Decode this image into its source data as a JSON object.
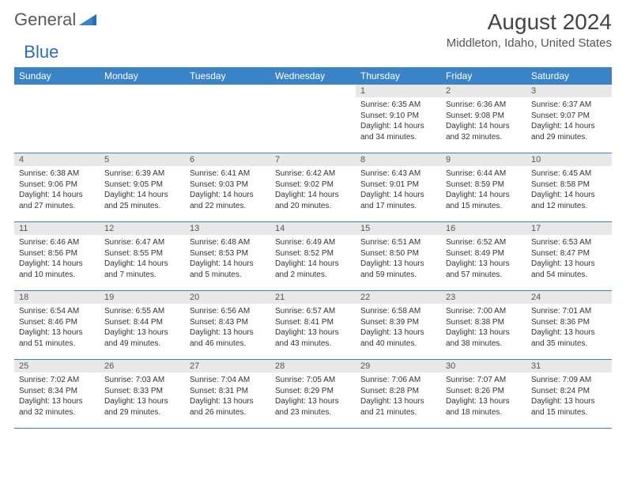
{
  "logo": {
    "general": "General",
    "blue": "Blue"
  },
  "title": "August 2024",
  "location": "Middleton, Idaho, United States",
  "colors": {
    "accent": "#3b83c7",
    "header_text": "#ffffff",
    "daynum_bg": "#e8e8e8",
    "body_text": "#333333",
    "logo_gray": "#5a5a5a",
    "logo_blue": "#2a6db8"
  },
  "day_names": [
    "Sunday",
    "Monday",
    "Tuesday",
    "Wednesday",
    "Thursday",
    "Friday",
    "Saturday"
  ],
  "weeks": [
    [
      {
        "empty": true
      },
      {
        "empty": true
      },
      {
        "empty": true
      },
      {
        "empty": true
      },
      {
        "num": "1",
        "sunrise": "Sunrise: 6:35 AM",
        "sunset": "Sunset: 9:10 PM",
        "daylight": "Daylight: 14 hours and 34 minutes."
      },
      {
        "num": "2",
        "sunrise": "Sunrise: 6:36 AM",
        "sunset": "Sunset: 9:08 PM",
        "daylight": "Daylight: 14 hours and 32 minutes."
      },
      {
        "num": "3",
        "sunrise": "Sunrise: 6:37 AM",
        "sunset": "Sunset: 9:07 PM",
        "daylight": "Daylight: 14 hours and 29 minutes."
      }
    ],
    [
      {
        "num": "4",
        "sunrise": "Sunrise: 6:38 AM",
        "sunset": "Sunset: 9:06 PM",
        "daylight": "Daylight: 14 hours and 27 minutes."
      },
      {
        "num": "5",
        "sunrise": "Sunrise: 6:39 AM",
        "sunset": "Sunset: 9:05 PM",
        "daylight": "Daylight: 14 hours and 25 minutes."
      },
      {
        "num": "6",
        "sunrise": "Sunrise: 6:41 AM",
        "sunset": "Sunset: 9:03 PM",
        "daylight": "Daylight: 14 hours and 22 minutes."
      },
      {
        "num": "7",
        "sunrise": "Sunrise: 6:42 AM",
        "sunset": "Sunset: 9:02 PM",
        "daylight": "Daylight: 14 hours and 20 minutes."
      },
      {
        "num": "8",
        "sunrise": "Sunrise: 6:43 AM",
        "sunset": "Sunset: 9:01 PM",
        "daylight": "Daylight: 14 hours and 17 minutes."
      },
      {
        "num": "9",
        "sunrise": "Sunrise: 6:44 AM",
        "sunset": "Sunset: 8:59 PM",
        "daylight": "Daylight: 14 hours and 15 minutes."
      },
      {
        "num": "10",
        "sunrise": "Sunrise: 6:45 AM",
        "sunset": "Sunset: 8:58 PM",
        "daylight": "Daylight: 14 hours and 12 minutes."
      }
    ],
    [
      {
        "num": "11",
        "sunrise": "Sunrise: 6:46 AM",
        "sunset": "Sunset: 8:56 PM",
        "daylight": "Daylight: 14 hours and 10 minutes."
      },
      {
        "num": "12",
        "sunrise": "Sunrise: 6:47 AM",
        "sunset": "Sunset: 8:55 PM",
        "daylight": "Daylight: 14 hours and 7 minutes."
      },
      {
        "num": "13",
        "sunrise": "Sunrise: 6:48 AM",
        "sunset": "Sunset: 8:53 PM",
        "daylight": "Daylight: 14 hours and 5 minutes."
      },
      {
        "num": "14",
        "sunrise": "Sunrise: 6:49 AM",
        "sunset": "Sunset: 8:52 PM",
        "daylight": "Daylight: 14 hours and 2 minutes."
      },
      {
        "num": "15",
        "sunrise": "Sunrise: 6:51 AM",
        "sunset": "Sunset: 8:50 PM",
        "daylight": "Daylight: 13 hours and 59 minutes."
      },
      {
        "num": "16",
        "sunrise": "Sunrise: 6:52 AM",
        "sunset": "Sunset: 8:49 PM",
        "daylight": "Daylight: 13 hours and 57 minutes."
      },
      {
        "num": "17",
        "sunrise": "Sunrise: 6:53 AM",
        "sunset": "Sunset: 8:47 PM",
        "daylight": "Daylight: 13 hours and 54 minutes."
      }
    ],
    [
      {
        "num": "18",
        "sunrise": "Sunrise: 6:54 AM",
        "sunset": "Sunset: 8:46 PM",
        "daylight": "Daylight: 13 hours and 51 minutes."
      },
      {
        "num": "19",
        "sunrise": "Sunrise: 6:55 AM",
        "sunset": "Sunset: 8:44 PM",
        "daylight": "Daylight: 13 hours and 49 minutes."
      },
      {
        "num": "20",
        "sunrise": "Sunrise: 6:56 AM",
        "sunset": "Sunset: 8:43 PM",
        "daylight": "Daylight: 13 hours and 46 minutes."
      },
      {
        "num": "21",
        "sunrise": "Sunrise: 6:57 AM",
        "sunset": "Sunset: 8:41 PM",
        "daylight": "Daylight: 13 hours and 43 minutes."
      },
      {
        "num": "22",
        "sunrise": "Sunrise: 6:58 AM",
        "sunset": "Sunset: 8:39 PM",
        "daylight": "Daylight: 13 hours and 40 minutes."
      },
      {
        "num": "23",
        "sunrise": "Sunrise: 7:00 AM",
        "sunset": "Sunset: 8:38 PM",
        "daylight": "Daylight: 13 hours and 38 minutes."
      },
      {
        "num": "24",
        "sunrise": "Sunrise: 7:01 AM",
        "sunset": "Sunset: 8:36 PM",
        "daylight": "Daylight: 13 hours and 35 minutes."
      }
    ],
    [
      {
        "num": "25",
        "sunrise": "Sunrise: 7:02 AM",
        "sunset": "Sunset: 8:34 PM",
        "daylight": "Daylight: 13 hours and 32 minutes."
      },
      {
        "num": "26",
        "sunrise": "Sunrise: 7:03 AM",
        "sunset": "Sunset: 8:33 PM",
        "daylight": "Daylight: 13 hours and 29 minutes."
      },
      {
        "num": "27",
        "sunrise": "Sunrise: 7:04 AM",
        "sunset": "Sunset: 8:31 PM",
        "daylight": "Daylight: 13 hours and 26 minutes."
      },
      {
        "num": "28",
        "sunrise": "Sunrise: 7:05 AM",
        "sunset": "Sunset: 8:29 PM",
        "daylight": "Daylight: 13 hours and 23 minutes."
      },
      {
        "num": "29",
        "sunrise": "Sunrise: 7:06 AM",
        "sunset": "Sunset: 8:28 PM",
        "daylight": "Daylight: 13 hours and 21 minutes."
      },
      {
        "num": "30",
        "sunrise": "Sunrise: 7:07 AM",
        "sunset": "Sunset: 8:26 PM",
        "daylight": "Daylight: 13 hours and 18 minutes."
      },
      {
        "num": "31",
        "sunrise": "Sunrise: 7:09 AM",
        "sunset": "Sunset: 8:24 PM",
        "daylight": "Daylight: 13 hours and 15 minutes."
      }
    ]
  ]
}
